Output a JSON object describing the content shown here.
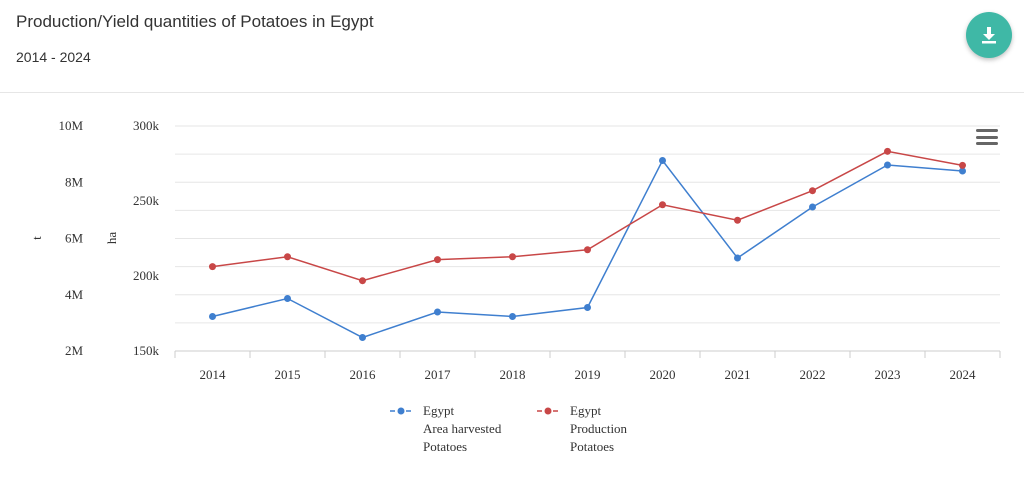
{
  "header": {
    "title": "Production/Yield quantities of Potatoes in Egypt",
    "subtitle": "2014 - 2024",
    "download_icon": "download-icon",
    "menu_icon": "hamburger-menu-icon"
  },
  "chart_data": {
    "type": "line",
    "categories": [
      "2014",
      "2015",
      "2016",
      "2017",
      "2018",
      "2019",
      "2020",
      "2021",
      "2022",
      "2023",
      "2024"
    ],
    "y_left": {
      "label": "t",
      "ticks": [
        "2M",
        "4M",
        "6M",
        "8M",
        "10M"
      ],
      "range": [
        2000000,
        10000000
      ]
    },
    "y_right": {
      "label": "ha",
      "ticks": [
        "150k",
        "200k",
        "250k",
        "300k"
      ],
      "range": [
        150000,
        300000
      ]
    },
    "grid": true,
    "legend_position": "bottom",
    "series": [
      {
        "name": "Egypt Area harvested Potatoes",
        "legend_lines": [
          "Egypt",
          "Area harvested",
          "Potatoes"
        ],
        "axis": "ha",
        "color": "#3f7fcf",
        "values": [
          173000,
          185000,
          159000,
          176000,
          173000,
          179000,
          277000,
          212000,
          246000,
          274000,
          270000
        ]
      },
      {
        "name": "Egypt Production Potatoes",
        "legend_lines": [
          "Egypt",
          "Production",
          "Potatoes"
        ],
        "axis": "t",
        "color": "#c84747",
        "values": [
          5000000,
          5350000,
          4500000,
          5250000,
          5350000,
          5600000,
          7200000,
          6650000,
          7700000,
          9100000,
          8600000
        ]
      }
    ]
  }
}
